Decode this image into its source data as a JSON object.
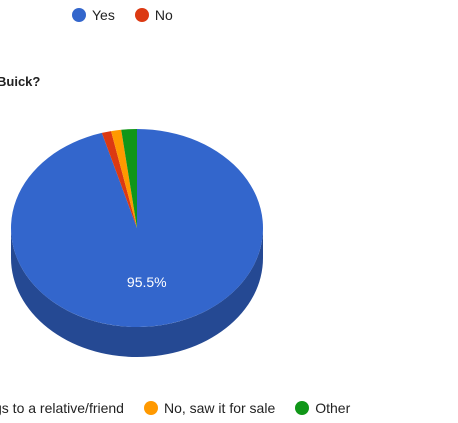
{
  "top_legend": [
    {
      "label": "Yes",
      "color": "#3366cc"
    },
    {
      "label": "No",
      "color": "#dc3912"
    }
  ],
  "chart_data": {
    "type": "pie",
    "title": "Buick?",
    "slices": [
      {
        "label": "gs to a relative/friend",
        "value": 95.5,
        "color": "#3366cc",
        "data_label": "95.5%"
      },
      {
        "label": "",
        "value": 1.2,
        "color": "#dc3912"
      },
      {
        "label": "No, saw it for sale",
        "value": 1.3,
        "color": "#ff9900"
      },
      {
        "label": "Other",
        "value": 2.0,
        "color": "#109618"
      }
    ],
    "legend_position": "bottom",
    "three_d": true
  },
  "bottom_legend": [
    {
      "label": "gs to a relative/friend",
      "color": "#3366cc"
    },
    {
      "label": "No, saw it for sale",
      "color": "#ff9900"
    },
    {
      "label": "Other",
      "color": "#109618"
    }
  ]
}
